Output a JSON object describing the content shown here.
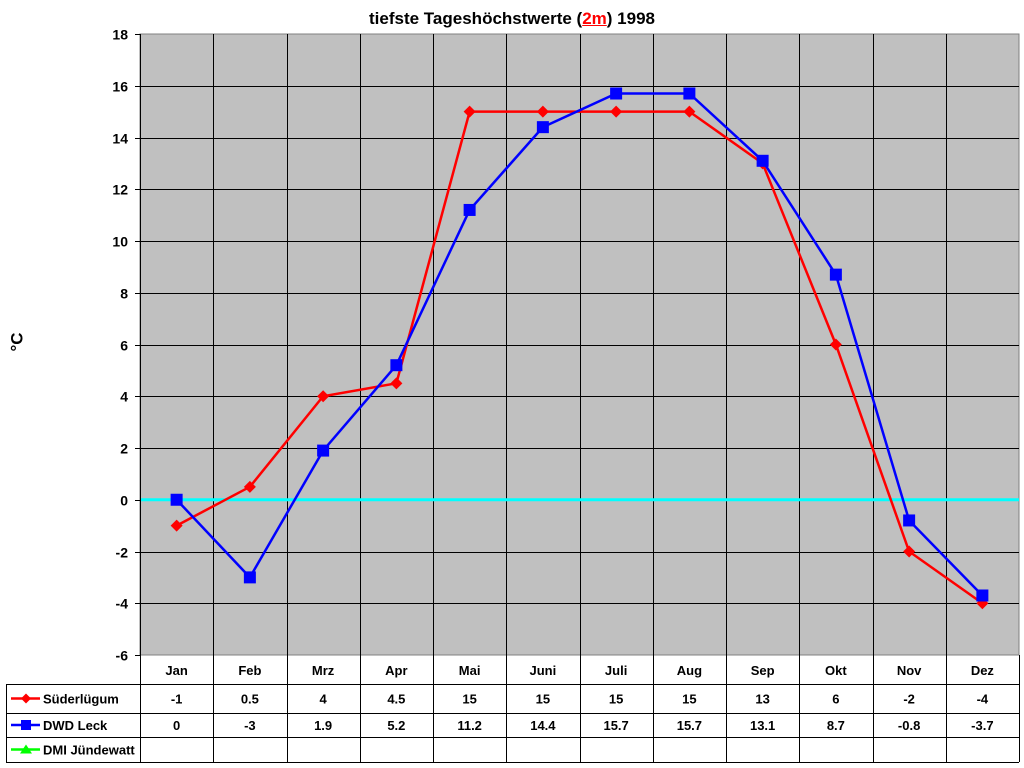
{
  "chart_data": {
    "type": "line",
    "title": "tiefste Tageshöchstwerte (2m) 1998",
    "title_parts": {
      "before": "tiefste Tageshöchstwerte (",
      "highlight": "2m",
      "after": ") 1998"
    },
    "xlabel": "",
    "ylabel": "°C",
    "ylim": [
      -6,
      18
    ],
    "yticks": [
      18,
      16,
      14,
      12,
      10,
      8,
      6,
      4,
      2,
      0,
      -2,
      -4,
      -6
    ],
    "grid": true,
    "zero_line_color": "#00ffff",
    "plot_background": "#c0c0c0",
    "legend_position": "data-table-left",
    "categories": [
      "Jan",
      "Feb",
      "Mrz",
      "Apr",
      "Mai",
      "Juni",
      "Juli",
      "Aug",
      "Sep",
      "Okt",
      "Nov",
      "Dez"
    ],
    "series": [
      {
        "name": "Süderlügum",
        "color": "#ff0000",
        "marker": "diamond",
        "values": [
          -1,
          0.5,
          4,
          4.5,
          15,
          15,
          15,
          15,
          13,
          6,
          -2,
          -4
        ],
        "labels": [
          "-1",
          "0.5",
          "4",
          "4.5",
          "15",
          "15",
          "15",
          "15",
          "13",
          "6",
          "-2",
          "-4"
        ]
      },
      {
        "name": "DWD Leck",
        "color": "#0000ff",
        "marker": "square",
        "values": [
          0,
          -3,
          1.9,
          5.2,
          11.2,
          14.4,
          15.7,
          15.7,
          13.1,
          8.7,
          -0.8,
          -3.7
        ],
        "labels": [
          "0",
          "-3",
          "1.9",
          "5.2",
          "11.2",
          "14.4",
          "15.7",
          "15.7",
          "13.1",
          "8.7",
          "-0.8",
          "-3.7"
        ]
      },
      {
        "name": "DMI Jündewatt",
        "color": "#00ff00",
        "marker": "triangle",
        "values": [
          null,
          null,
          null,
          null,
          null,
          null,
          null,
          null,
          null,
          null,
          null,
          null
        ],
        "labels": [
          "",
          "",
          "",
          "",
          "",
          "",
          "",
          "",
          "",
          "",
          "",
          ""
        ]
      }
    ]
  }
}
